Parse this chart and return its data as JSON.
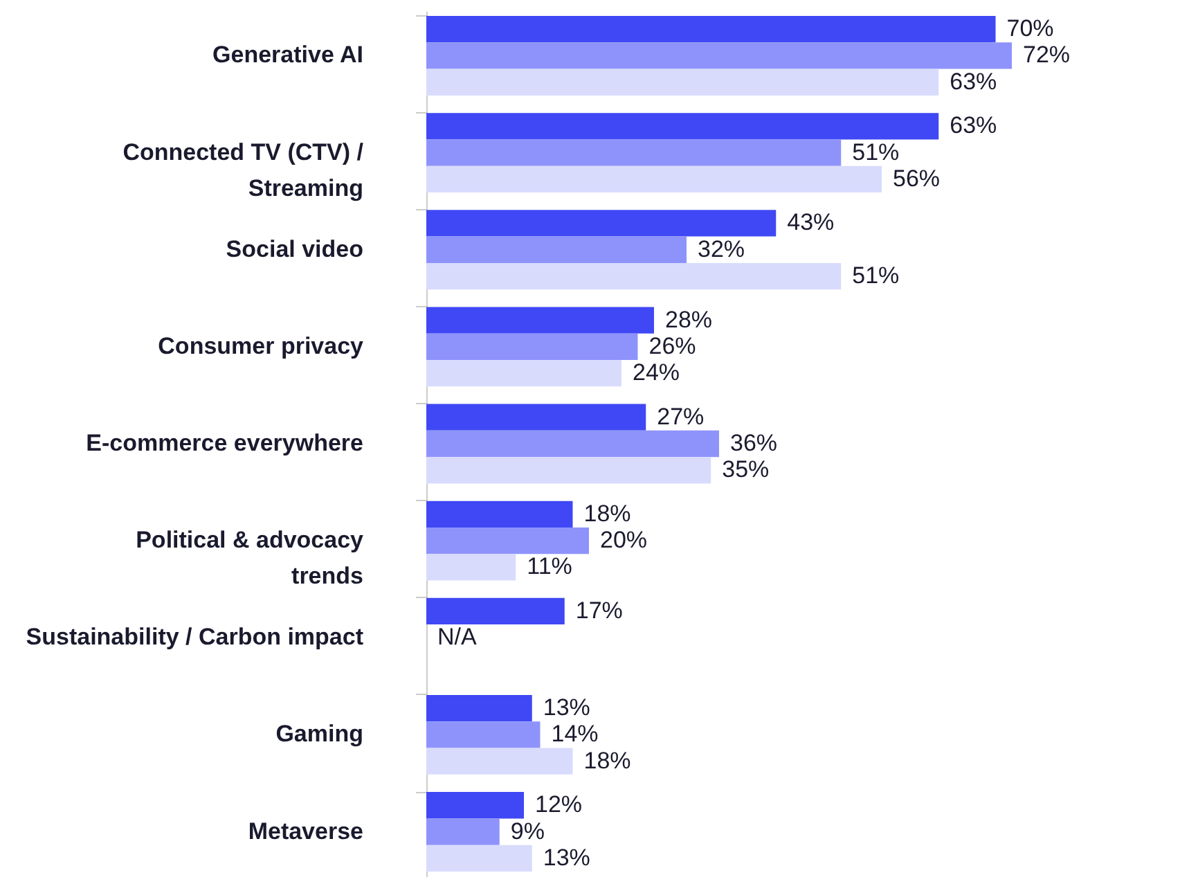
{
  "chart_data": {
    "type": "bar",
    "orientation": "horizontal",
    "grid": false,
    "legend": false,
    "categories": [
      "Generative AI",
      "Connected TV (CTV) /\nStreaming",
      "Social video",
      "Consumer privacy",
      "E-commerce everywhere",
      "Political & advocacy\ntrends",
      "Sustainability / Carbon impact",
      "Gaming",
      "Metaverse"
    ],
    "series": [
      {
        "color": "#3f48f4",
        "values": [
          70,
          63,
          43,
          28,
          27,
          18,
          17,
          13,
          12
        ],
        "value_labels": [
          "70%",
          "63%",
          "43%",
          "28%",
          "27%",
          "18%",
          "17%",
          "13%",
          "12%"
        ]
      },
      {
        "color": "#8e93fb",
        "values": [
          72,
          51,
          32,
          26,
          36,
          20,
          null,
          14,
          9
        ],
        "value_labels": [
          "72%",
          "51%",
          "32%",
          "26%",
          "36%",
          "20%",
          "N/A",
          "14%",
          "9%"
        ]
      },
      {
        "color": "#d9dbfd",
        "values": [
          63,
          56,
          51,
          24,
          35,
          11,
          null,
          18,
          13
        ],
        "value_labels": [
          "63%",
          "56%",
          "51%",
          "24%",
          "35%",
          "11%",
          null,
          "18%",
          "13%"
        ]
      }
    ]
  }
}
